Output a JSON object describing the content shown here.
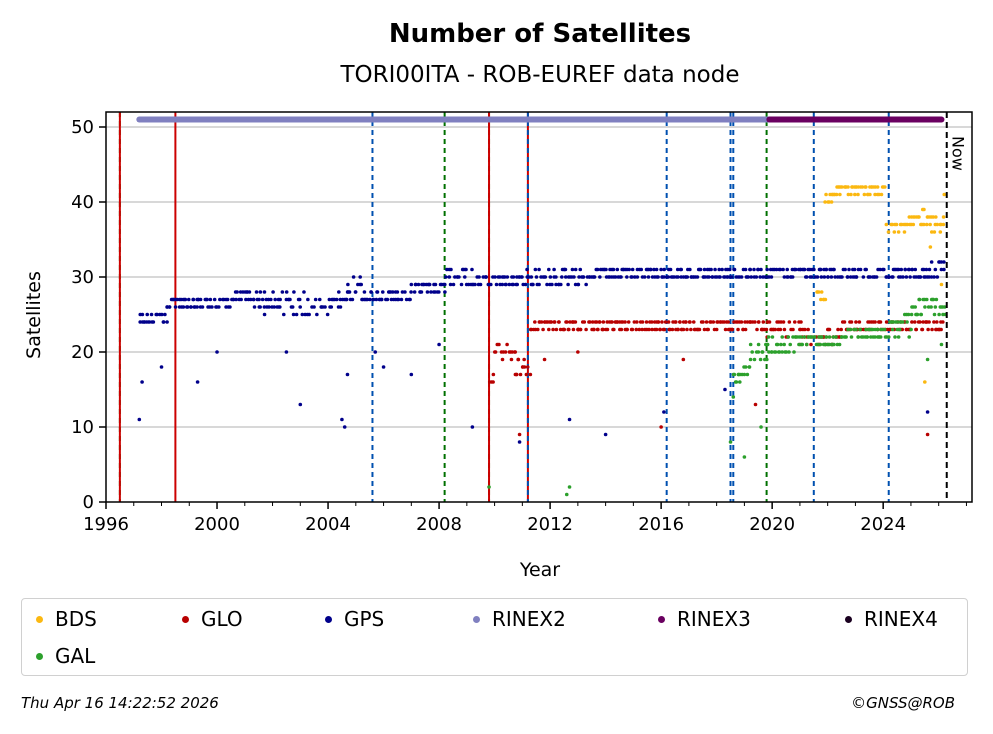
{
  "colors": {
    "BDS": "#fbb811",
    "GLO": "#b80000",
    "GPS": "#00008b",
    "RINEX2": "#8080c0",
    "RINEX3": "#6a0060",
    "RINEX4": "#1a0020",
    "GAL": "#2ca02c"
  },
  "legend": [
    "BDS",
    "GLO",
    "GPS",
    "RINEX2",
    "RINEX3",
    "RINEX4",
    "GAL"
  ],
  "footer": {
    "timestamp": "Thu Apr 16 14:22:52 2026",
    "credit": "©GNSS@ROB"
  },
  "chart_data": {
    "type": "scatter",
    "title": "Number of Satellites",
    "subtitle": "TORI00ITA - ROB-EUREF data node",
    "xlabel": "Year",
    "ylabel": "Satellites",
    "xlim": [
      1996,
      2027.2
    ],
    "ylim": [
      0,
      52
    ],
    "xticks": [
      1996,
      2000,
      2004,
      2008,
      2012,
      2016,
      2020,
      2024
    ],
    "yticks": [
      0,
      10,
      20,
      30,
      40,
      50
    ],
    "now_label": "Now",
    "now_year": 2026.29,
    "rinex_bars": [
      {
        "name": "RINEX2",
        "from": 1997.2,
        "to": 2019.9,
        "y": 51
      },
      {
        "name": "RINEX3",
        "from": 2019.9,
        "to": 2026.1,
        "y": 51
      }
    ],
    "event_lines": [
      {
        "year": 1996.5,
        "color": "#007000",
        "style": "dashed"
      },
      {
        "year": 1996.5,
        "color": "#cc0000",
        "style": "solid"
      },
      {
        "year": 1998.5,
        "color": "#cc0000",
        "style": "solid"
      },
      {
        "year": 2005.6,
        "color": "#0050b0",
        "style": "dashed"
      },
      {
        "year": 2008.2,
        "color": "#007000",
        "style": "dashed"
      },
      {
        "year": 2009.8,
        "color": "#007000",
        "style": "dashed"
      },
      {
        "year": 2009.8,
        "color": "#cc0000",
        "style": "solid"
      },
      {
        "year": 2011.2,
        "color": "#cc0000",
        "style": "solid"
      },
      {
        "year": 2011.2,
        "color": "#0050b0",
        "style": "dashed"
      },
      {
        "year": 2016.2,
        "color": "#0050b0",
        "style": "dashed"
      },
      {
        "year": 2018.5,
        "color": "#0050b0",
        "style": "dashed"
      },
      {
        "year": 2018.6,
        "color": "#0050b0",
        "style": "dashed"
      },
      {
        "year": 2019.8,
        "color": "#007000",
        "style": "dashed"
      },
      {
        "year": 2021.5,
        "color": "#0050b0",
        "style": "dashed"
      },
      {
        "year": 2024.2,
        "color": "#0050b0",
        "style": "dashed"
      }
    ],
    "series": [
      {
        "name": "GPS",
        "segments": [
          [
            1997.2,
            1998.2,
            24,
            25
          ],
          [
            1998.2,
            2000.5,
            26,
            27
          ],
          [
            2000.5,
            2001.7,
            26,
            28
          ],
          [
            2001.7,
            2004.0,
            25,
            28
          ],
          [
            2004.0,
            2004.7,
            26,
            28
          ],
          [
            2004.7,
            2005.2,
            27,
            30
          ],
          [
            2005.2,
            2007.0,
            27,
            28
          ],
          [
            2007.0,
            2008.2,
            28,
            29
          ],
          [
            2008.2,
            2009.2,
            29,
            31
          ],
          [
            2009.2,
            2010.8,
            29,
            30
          ],
          [
            2010.8,
            2013.5,
            29,
            31
          ],
          [
            2013.5,
            2019.8,
            30,
            31
          ],
          [
            2019.8,
            2021.7,
            30,
            31
          ],
          [
            2021.7,
            2024.2,
            30,
            31
          ],
          [
            2024.2,
            2025.3,
            30,
            31
          ],
          [
            2025.3,
            2026.2,
            30,
            32
          ]
        ],
        "outliers": [
          [
            1997.2,
            11
          ],
          [
            1997.3,
            16
          ],
          [
            1998.0,
            18
          ],
          [
            1999.3,
            16
          ],
          [
            2003.0,
            13
          ],
          [
            2004.5,
            11
          ],
          [
            2004.6,
            10
          ],
          [
            2004.7,
            17
          ],
          [
            2006.0,
            18
          ],
          [
            2007.0,
            17
          ],
          [
            2009.2,
            10
          ],
          [
            2010.9,
            8
          ],
          [
            2012.7,
            11
          ],
          [
            2014.0,
            9
          ],
          [
            2016.1,
            12
          ],
          [
            2018.3,
            15
          ],
          [
            2025.6,
            12
          ],
          [
            2000.0,
            20
          ],
          [
            2002.5,
            20
          ],
          [
            2005.7,
            20
          ],
          [
            2008.0,
            21
          ]
        ]
      },
      {
        "name": "GLO",
        "segments": [
          [
            2009.8,
            2010.0,
            15,
            17
          ],
          [
            2010.0,
            2010.7,
            19,
            21
          ],
          [
            2010.7,
            2011.3,
            17,
            20
          ],
          [
            2011.3,
            2013.0,
            23,
            24
          ],
          [
            2013.0,
            2016.5,
            23,
            24
          ],
          [
            2016.5,
            2019.8,
            23,
            24
          ],
          [
            2019.8,
            2021.0,
            22,
            24
          ],
          [
            2021.0,
            2022.5,
            21,
            23
          ],
          [
            2022.5,
            2026.2,
            23,
            24
          ]
        ],
        "outliers": [
          [
            2010.9,
            9
          ],
          [
            2016.0,
            10
          ],
          [
            2019.4,
            13
          ],
          [
            2025.6,
            9
          ],
          [
            2011.8,
            19
          ],
          [
            2013.0,
            20
          ],
          [
            2016.8,
            19
          ]
        ]
      },
      {
        "name": "BDS",
        "segments": [
          [
            2021.6,
            2021.9,
            27,
            29
          ],
          [
            2021.9,
            2022.3,
            40,
            41
          ],
          [
            2022.3,
            2024.1,
            41,
            42
          ],
          [
            2024.1,
            2025.1,
            36,
            38
          ],
          [
            2025.1,
            2026.2,
            36,
            39
          ]
        ],
        "outliers": [
          [
            2025.5,
            16
          ],
          [
            2025.7,
            34
          ],
          [
            2026.1,
            29
          ],
          [
            2026.2,
            41
          ]
        ]
      },
      {
        "name": "GAL",
        "segments": [
          [
            2018.6,
            2019.2,
            16,
            18
          ],
          [
            2019.2,
            2019.8,
            19,
            21
          ],
          [
            2019.8,
            2020.8,
            20,
            22
          ],
          [
            2020.8,
            2022.5,
            21,
            22
          ],
          [
            2022.5,
            2024.2,
            22,
            23
          ],
          [
            2024.2,
            2025.0,
            22,
            25
          ],
          [
            2025.0,
            2026.2,
            25,
            27
          ]
        ],
        "outliers": [
          [
            2009.8,
            2
          ],
          [
            2012.6,
            1
          ],
          [
            2012.7,
            2
          ],
          [
            2018.5,
            8
          ],
          [
            2018.6,
            14
          ],
          [
            2019.0,
            6
          ],
          [
            2019.6,
            10
          ],
          [
            2025.6,
            19
          ],
          [
            2026.1,
            21
          ]
        ]
      }
    ]
  }
}
